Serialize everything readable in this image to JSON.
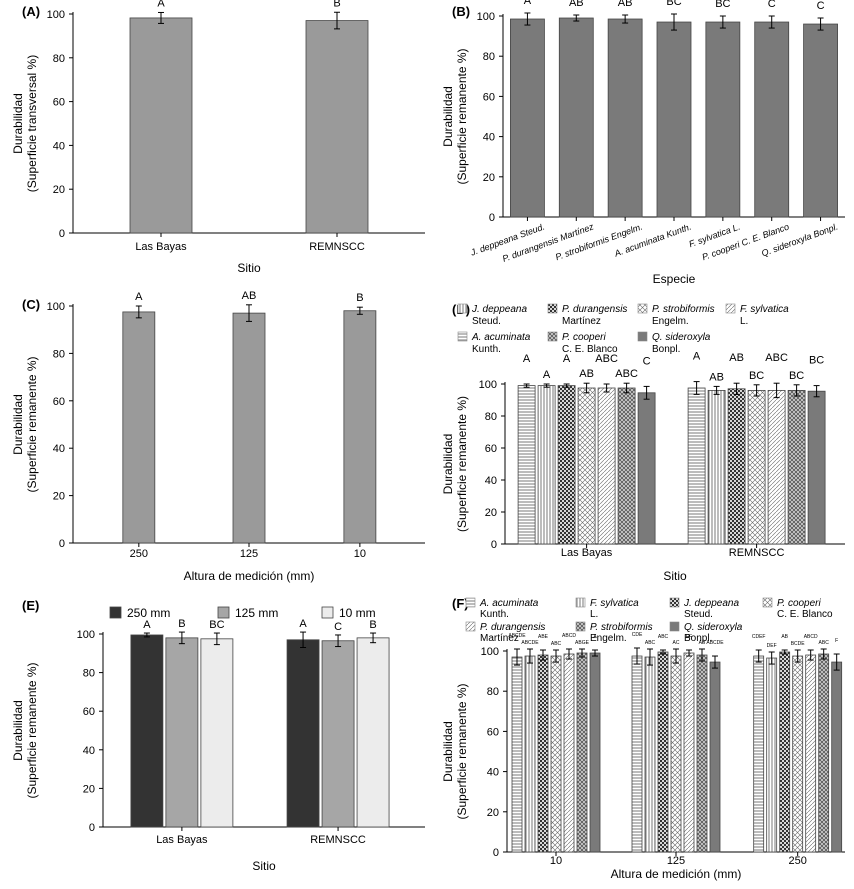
{
  "patterns": {
    "jd": "vlines",
    "pd": "checker",
    "ps": "dgrid",
    "fs": "dots",
    "aa": "hlines",
    "pc": "dgrid2",
    "qs": "solid",
    "fs_f": "vlines"
  },
  "chart_data": [
    {
      "id": "A",
      "panel_label": "(A)",
      "type": "bar",
      "categories": [
        "Las Bayas",
        "REMNSCC"
      ],
      "series": [
        {
          "name": "Durabilidad",
          "values": [
            98.2,
            97.0
          ],
          "errors": [
            2.5,
            3.8
          ],
          "color": "#9a9a9a"
        }
      ],
      "letters": [
        [
          "A",
          "B"
        ]
      ],
      "title": "",
      "xlabel": "Sitio",
      "ylabel": [
        "Durabilidad",
        "(Superficie transversal %)"
      ],
      "ylim": [
        0,
        100
      ],
      "yticks": [
        0,
        20,
        40,
        60,
        80,
        100
      ]
    },
    {
      "id": "B",
      "panel_label": "(B)",
      "type": "bar",
      "categories": [
        "J. deppeana Steud.",
        "P. durangensis Martínez",
        "P. strobiformis Engelm.",
        "A. acuminata Kunth.",
        "F. sylvatica L.",
        "P. cooperi C. E. Blanco",
        "Q. sideroxyla Bonpl."
      ],
      "series": [
        {
          "name": "Durabilidad",
          "values": [
            98.5,
            99.0,
            98.5,
            97.0,
            97.0,
            97.0,
            96.0
          ],
          "errors": [
            3.0,
            1.5,
            2.0,
            4.0,
            3.0,
            3.0,
            3.0
          ],
          "color": "#7a7a7a"
        }
      ],
      "letters": [
        [
          "A",
          "AB",
          "AB",
          "BC",
          "BC",
          "C",
          "C"
        ]
      ],
      "title": "",
      "xlabel": "Especie",
      "ylabel": [
        "Durabilidad",
        "(Superficie remanente %)"
      ],
      "ylim": [
        0,
        100
      ],
      "yticks": [
        0,
        20,
        40,
        60,
        80,
        100
      ]
    },
    {
      "id": "C",
      "panel_label": "(C)",
      "type": "bar",
      "categories": [
        "250",
        "125",
        "10"
      ],
      "series": [
        {
          "name": "Durabilidad",
          "values": [
            97.5,
            97.0,
            98.0
          ],
          "errors": [
            2.5,
            3.5,
            1.5
          ],
          "color": "#9a9a9a"
        }
      ],
      "letters": [
        [
          "A",
          "AB",
          "B"
        ]
      ],
      "title": "",
      "xlabel": "Altura de medición (mm)",
      "ylabel": [
        "Durabilidad",
        "(Superficie remanente %)"
      ],
      "ylim": [
        0,
        100
      ],
      "yticks": [
        0,
        20,
        40,
        60,
        80,
        100
      ]
    },
    {
      "id": "D",
      "panel_label": "(D)",
      "type": "bar",
      "categories": [
        "Las Bayas",
        "REMNSCC"
      ],
      "legend": [
        {
          "italic": "J. deppeana",
          "rest": "Steud.",
          "pattern": "vlines"
        },
        {
          "italic": "P. durangensis",
          "rest": "Martínez",
          "pattern": "checker"
        },
        {
          "italic": "P. strobiformis",
          "rest": "Engelm.",
          "pattern": "dgrid"
        },
        {
          "italic": "F. sylvatica",
          "rest": "L.",
          "pattern": "dots"
        },
        {
          "italic": "A. acuminata",
          "rest": "Kunth.",
          "pattern": "hlines"
        },
        {
          "italic": "P. cooperi",
          "rest": "C. E. Blanco",
          "pattern": "dgrid2"
        },
        {
          "italic": "Q. sideroxyla",
          "rest": "Bonpl.",
          "pattern": "solid"
        }
      ],
      "series": [
        {
          "name": "A. acuminata Kunth.",
          "pattern": "hlines",
          "values": [
            99.0,
            97.5
          ],
          "errors": [
            1.0,
            4.0
          ]
        },
        {
          "name": "F. sylvatica L.",
          "pattern": "vlines",
          "values": [
            99.0,
            96.0
          ],
          "errors": [
            1.0,
            2.5
          ]
        },
        {
          "name": "J. deppeana Steud.",
          "pattern": "checker",
          "values": [
            99.0,
            97.0
          ],
          "errors": [
            1.0,
            3.5
          ]
        },
        {
          "name": "P. cooperi C. E. Blanco",
          "pattern": "dgrid",
          "values": [
            97.5,
            96.0
          ],
          "errors": [
            3.0,
            3.5
          ]
        },
        {
          "name": "P. durangensis Martínez",
          "pattern": "dots",
          "values": [
            97.5,
            96.0
          ],
          "errors": [
            2.5,
            4.5
          ]
        },
        {
          "name": "P. strobiformis Engelm.",
          "pattern": "dgrid2",
          "values": [
            97.5,
            96.0
          ],
          "errors": [
            3.0,
            3.5
          ]
        },
        {
          "name": "Q. sideroxyla Bonpl.",
          "pattern": "solid",
          "values": [
            94.5,
            95.5
          ],
          "errors": [
            4.0,
            3.5
          ]
        }
      ],
      "letters": [
        [
          "A",
          "A",
          "A",
          "AB",
          "ABC",
          "ABC",
          "C"
        ],
        [
          "A",
          "AB",
          "AB",
          "BC",
          "ABC",
          "BC",
          "BC"
        ]
      ],
      "title": "",
      "xlabel": "Sitio",
      "ylabel": [
        "Durabilidad",
        "(Superficie remanente %)"
      ],
      "ylim": [
        0,
        100
      ],
      "yticks": [
        0,
        20,
        40,
        60,
        80,
        100
      ]
    },
    {
      "id": "E",
      "panel_label": "(E)",
      "type": "bar",
      "categories": [
        "Las Bayas",
        "REMNSCC"
      ],
      "legend": [
        {
          "label": "250 mm",
          "color": "#333333"
        },
        {
          "label": "125 mm",
          "color": "#a6a6a6"
        },
        {
          "label": "10 mm",
          "color": "#ececec"
        }
      ],
      "series": [
        {
          "name": "250 mm",
          "color": "#333333",
          "values": [
            99.5,
            97.0
          ],
          "errors": [
            1.0,
            4.0
          ]
        },
        {
          "name": "125 mm",
          "color": "#a6a6a6",
          "values": [
            98.0,
            96.5
          ],
          "errors": [
            3.0,
            3.0
          ]
        },
        {
          "name": "10 mm",
          "color": "#ececec",
          "values": [
            97.5,
            98.0
          ],
          "errors": [
            3.0,
            2.5
          ]
        }
      ],
      "letters": [
        [
          "A",
          "B",
          "BC"
        ],
        [
          "A",
          "C",
          "B"
        ]
      ],
      "title": "",
      "xlabel": "Sitio",
      "ylabel": [
        "Durabilidad",
        "(Superficie remanente %)"
      ],
      "ylim": [
        0,
        100
      ],
      "yticks": [
        0,
        20,
        40,
        60,
        80,
        100
      ]
    },
    {
      "id": "F",
      "panel_label": "(F)",
      "type": "bar",
      "categories": [
        "10",
        "125",
        "250"
      ],
      "legend": [
        {
          "italic": "A. acuminata",
          "rest": "Kunth.",
          "pattern": "hlines"
        },
        {
          "italic": "F. sylvatica",
          "rest": "L.",
          "pattern": "vlines"
        },
        {
          "italic": "J. deppeana",
          "rest": "Steud.",
          "pattern": "checker"
        },
        {
          "italic": "P. cooperi",
          "rest": "C. E. Blanco",
          "pattern": "dgrid"
        },
        {
          "italic": "P. durangensis",
          "rest": "Martínez",
          "pattern": "dots"
        },
        {
          "italic": "P. strobiformis",
          "rest": "Engelm.",
          "pattern": "dgrid2"
        },
        {
          "italic": "Q. sideroxyla",
          "rest": "Bonpl.",
          "pattern": "solid"
        }
      ],
      "series": [
        {
          "name": "A. acuminata Kunth.",
          "pattern": "hlines",
          "values": [
            97.0,
            97.5,
            97.5
          ],
          "errors": [
            4.0,
            4.0,
            3.0
          ]
        },
        {
          "name": "F. sylvatica L.",
          "pattern": "vlines",
          "values": [
            97.5,
            97.0,
            96.5
          ],
          "errors": [
            3.5,
            4.0,
            3.0
          ]
        },
        {
          "name": "J. deppeana Steud.",
          "pattern": "checker",
          "values": [
            98.0,
            99.5,
            99.5
          ],
          "errors": [
            2.5,
            1.0,
            1.0
          ]
        },
        {
          "name": "P. cooperi C. E. Blanco",
          "pattern": "dgrid",
          "values": [
            97.5,
            97.5,
            97.5
          ],
          "errors": [
            3.0,
            3.5,
            3.0
          ]
        },
        {
          "name": "P. durangensis Martínez",
          "pattern": "dots",
          "values": [
            98.5,
            99.0,
            98.0
          ],
          "errors": [
            2.5,
            1.5,
            2.5
          ]
        },
        {
          "name": "P. strobiformis Engelm.",
          "pattern": "dgrid2",
          "values": [
            99.0,
            98.0,
            98.5
          ],
          "errors": [
            2.0,
            3.0,
            2.5
          ]
        },
        {
          "name": "Q. sideroxyla Bonpl.",
          "pattern": "solid",
          "values": [
            99.0,
            94.5,
            94.5
          ],
          "errors": [
            1.5,
            3.0,
            4.0
          ]
        }
      ],
      "letters": [
        [
          "ABCDE",
          "ABCDE",
          "ABE",
          "ABC",
          "ABCD",
          "ABGE",
          "A"
        ],
        [
          "CDE",
          "ABC",
          "ABC",
          "AC",
          "EF",
          "AB",
          "ABCDE"
        ],
        [
          "CDEF",
          "DEF",
          "AB",
          "BCDE",
          "ABCD",
          "ABC",
          "F"
        ]
      ],
      "title": "",
      "xlabel": "Altura de medición (mm)",
      "ylabel": [
        "Durabilidad",
        "(Superficie remanente %)"
      ],
      "ylim": [
        0,
        100
      ],
      "yticks": [
        0,
        20,
        40,
        60,
        80,
        100
      ]
    }
  ]
}
